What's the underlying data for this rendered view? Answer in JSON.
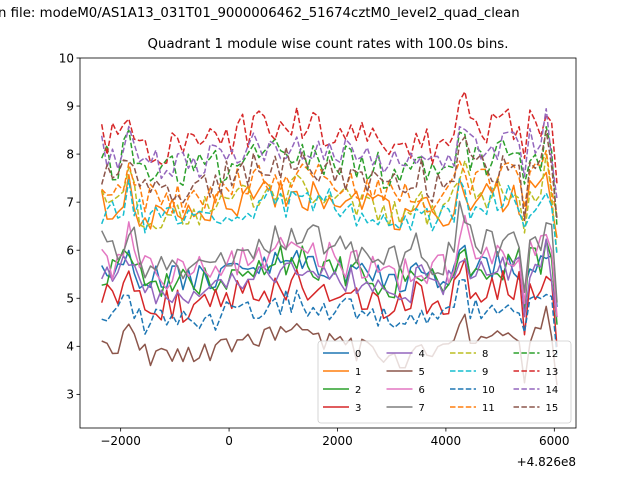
{
  "chart_data": {
    "type": "line",
    "suptitle": "n file: modeM0/AS1A13_031T01_9000006462_51674cztM0_level2_quad_clean",
    "title": "Quadrant 1 module wise count rates with 100.0s bins.",
    "xlabel": "",
    "ylabel": "",
    "x_offset_label": "+4.826e8",
    "xlim": [
      -2750,
      6400
    ],
    "ylim": [
      2.3,
      10
    ],
    "xticks": [
      -2000,
      0,
      2000,
      4000,
      6000
    ],
    "xtick_labels": [
      "−2000",
      "0",
      "2000",
      "4000",
      "6000"
    ],
    "yticks": [
      3,
      4,
      5,
      6,
      7,
      8,
      9,
      10
    ],
    "ytick_labels": [
      "3",
      "4",
      "5",
      "6",
      "7",
      "8",
      "9",
      "10"
    ],
    "x_start": -2350,
    "x_step": 100,
    "n_points": 85,
    "grid": false,
    "legend_position": "lower-right",
    "legend_columns": 4,
    "series": [
      {
        "name": "0",
        "color": "#1f77b4",
        "dash": "solid",
        "base": 5.55,
        "amp": 0.3,
        "seed": 1
      },
      {
        "name": "1",
        "color": "#ff7f0e",
        "dash": "solid",
        "base": 6.95,
        "amp": 0.35,
        "seed": 2
      },
      {
        "name": "2",
        "color": "#2ca02c",
        "dash": "solid",
        "base": 5.55,
        "amp": 0.35,
        "seed": 3
      },
      {
        "name": "3",
        "color": "#d62728",
        "dash": "solid",
        "base": 5.05,
        "amp": 0.35,
        "seed": 4
      },
      {
        "name": "4",
        "color": "#9467bd",
        "dash": "solid",
        "base": 5.4,
        "amp": 0.3,
        "seed": 5
      },
      {
        "name": "5",
        "color": "#8c564b",
        "dash": "solid",
        "base": 4.0,
        "amp": 0.25,
        "seed": 6
      },
      {
        "name": "6",
        "color": "#e377c2",
        "dash": "solid",
        "base": 5.75,
        "amp": 0.35,
        "seed": 7
      },
      {
        "name": "7",
        "color": "#7f7f7f",
        "dash": "solid",
        "base": 6.0,
        "amp": 0.35,
        "seed": 8
      },
      {
        "name": "8",
        "color": "#bcbd22",
        "dash": "dashed",
        "base": 7.0,
        "amp": 0.3,
        "seed": 9
      },
      {
        "name": "9",
        "color": "#17becf",
        "dash": "dashed",
        "base": 6.85,
        "amp": 0.35,
        "seed": 10
      },
      {
        "name": "10",
        "color": "#1f77b4",
        "dash": "dashed",
        "base": 4.7,
        "amp": 0.3,
        "seed": 11
      },
      {
        "name": "11",
        "color": "#ff7f0e",
        "dash": "dashed",
        "base": 7.3,
        "amp": 0.35,
        "seed": 12
      },
      {
        "name": "12",
        "color": "#2ca02c",
        "dash": "dashed",
        "base": 7.8,
        "amp": 0.4,
        "seed": 13
      },
      {
        "name": "13",
        "color": "#d62728",
        "dash": "dashed",
        "base": 8.35,
        "amp": 0.4,
        "seed": 14
      },
      {
        "name": "14",
        "color": "#9467bd",
        "dash": "dashed",
        "base": 8.0,
        "amp": 0.35,
        "seed": 15
      },
      {
        "name": "15",
        "color": "#8c564b",
        "dash": "dashed",
        "base": 7.55,
        "amp": 0.35,
        "seed": 16
      }
    ]
  }
}
